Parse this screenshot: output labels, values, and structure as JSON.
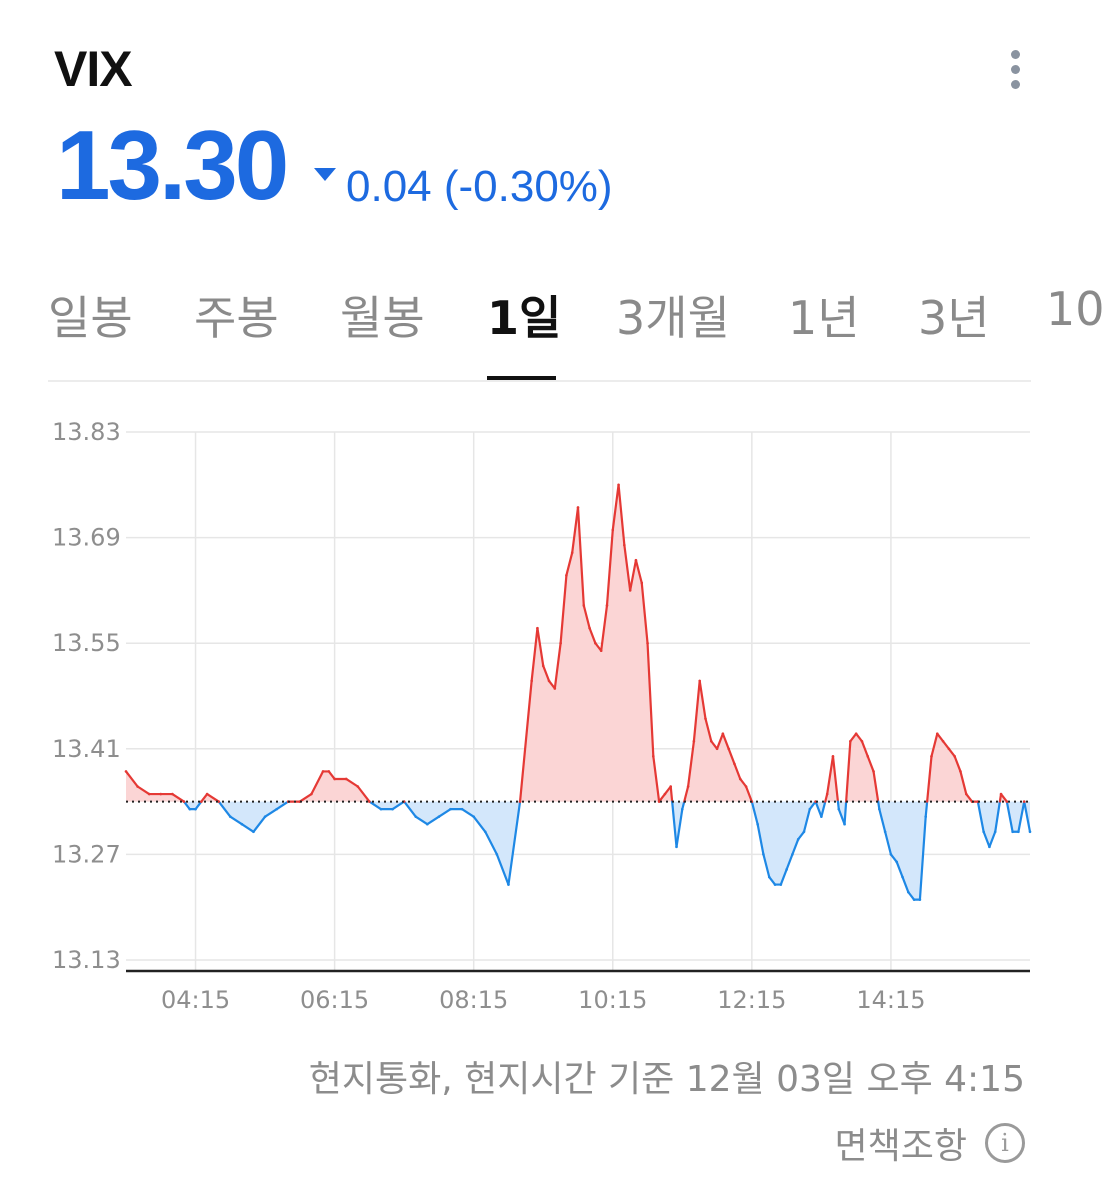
{
  "header": {
    "ticker": "VIX",
    "menu_icon": "more-vertical-icon",
    "price": "13.30",
    "direction_icon": "triangle-down-icon",
    "change": "0.04 (-0.30%)"
  },
  "colors": {
    "accent": "#1d6ae0",
    "up_line": "#e53935",
    "up_fill": "#fbd5d5",
    "down_line": "#1e88e5",
    "down_fill": "#d3e7fb"
  },
  "tabs": [
    {
      "label": "일봉",
      "active": false
    },
    {
      "label": "주봉",
      "active": false
    },
    {
      "label": "월봉",
      "active": false
    },
    {
      "label": "1일",
      "active": true
    },
    {
      "label": "3개월",
      "active": false
    },
    {
      "label": "1년",
      "active": false
    },
    {
      "label": "3년",
      "active": false
    },
    {
      "label": "10",
      "active": false
    }
  ],
  "chart_data": {
    "type": "line",
    "baseline": 13.34,
    "ylim": [
      13.13,
      13.83
    ],
    "yticks": [
      "13.83",
      "13.69",
      "13.55",
      "13.41",
      "13.27",
      "13.13"
    ],
    "xlim": [
      "03:15",
      "16:15"
    ],
    "xticks": [
      "04:15",
      "06:15",
      "08:15",
      "10:15",
      "12:15",
      "14:15"
    ],
    "grid": true,
    "series": [
      {
        "x": [
          "03:15",
          "03:25",
          "03:35",
          "03:45",
          "03:55",
          "04:05",
          "04:10",
          "04:15",
          "04:20",
          "04:25",
          "04:35",
          "04:45",
          "04:55",
          "05:05",
          "05:15",
          "05:25",
          "05:35",
          "05:45",
          "05:55",
          "06:05",
          "06:10",
          "06:15",
          "06:25",
          "06:35",
          "06:45",
          "06:55",
          "07:05",
          "07:15",
          "07:25",
          "07:35",
          "07:45",
          "07:55",
          "08:05",
          "08:15",
          "08:25",
          "08:35",
          "08:45",
          "08:55",
          "09:05",
          "09:10",
          "09:15",
          "09:20",
          "09:25",
          "09:30",
          "09:35",
          "09:40",
          "09:45",
          "09:50",
          "09:55",
          "10:00",
          "10:05",
          "10:10",
          "10:15",
          "10:20",
          "10:25",
          "10:30",
          "10:35",
          "10:40",
          "10:45",
          "10:50",
          "10:55",
          "11:00",
          "11:05",
          "11:10",
          "11:15",
          "11:20",
          "11:25",
          "11:30",
          "11:35",
          "11:40",
          "11:45",
          "11:50",
          "11:55",
          "12:00",
          "12:05",
          "12:10",
          "12:15",
          "12:20",
          "12:25",
          "12:30",
          "12:35",
          "12:40",
          "12:45",
          "12:50",
          "12:55",
          "13:00",
          "13:05",
          "13:10",
          "13:15",
          "13:20",
          "13:25",
          "13:30",
          "13:35",
          "13:40",
          "13:45",
          "13:50",
          "13:55",
          "14:00",
          "14:05",
          "14:10",
          "14:15",
          "14:20",
          "14:25",
          "14:30",
          "14:35",
          "14:40",
          "14:45",
          "14:50",
          "14:55",
          "15:00",
          "15:05",
          "15:10",
          "15:15",
          "15:20",
          "15:25",
          "15:30",
          "15:35",
          "15:40",
          "15:45",
          "15:50",
          "15:55",
          "16:00",
          "16:05",
          "16:10",
          "16:15"
        ],
        "values": [
          13.38,
          13.36,
          13.35,
          13.35,
          13.35,
          13.34,
          13.33,
          13.33,
          13.34,
          13.35,
          13.34,
          13.32,
          13.31,
          13.3,
          13.32,
          13.33,
          13.34,
          13.34,
          13.35,
          13.38,
          13.38,
          13.37,
          13.37,
          13.36,
          13.34,
          13.33,
          13.33,
          13.34,
          13.32,
          13.31,
          13.32,
          13.33,
          13.33,
          13.32,
          13.3,
          13.27,
          13.23,
          13.34,
          13.5,
          13.57,
          13.52,
          13.5,
          13.49,
          13.55,
          13.64,
          13.67,
          13.73,
          13.6,
          13.57,
          13.55,
          13.54,
          13.6,
          13.7,
          13.76,
          13.68,
          13.62,
          13.66,
          13.63,
          13.55,
          13.4,
          13.34,
          13.35,
          13.36,
          13.28,
          13.33,
          13.36,
          13.42,
          13.5,
          13.45,
          13.42,
          13.41,
          13.43,
          13.41,
          13.39,
          13.37,
          13.36,
          13.34,
          13.31,
          13.27,
          13.24,
          13.23,
          13.23,
          13.25,
          13.27,
          13.29,
          13.3,
          13.33,
          13.34,
          13.32,
          13.35,
          13.4,
          13.33,
          13.31,
          13.42,
          13.43,
          13.42,
          13.4,
          13.38,
          13.33,
          13.3,
          13.27,
          13.26,
          13.24,
          13.22,
          13.21,
          13.21,
          13.32,
          13.4,
          13.43,
          13.42,
          13.41,
          13.4,
          13.38,
          13.35,
          13.34,
          13.34,
          13.3,
          13.28,
          13.3,
          13.35,
          13.34,
          13.3,
          13.3,
          13.34,
          13.3
        ]
      }
    ]
  },
  "footnote": "현지통화, 현지시간 기준 12월 03일 오후 4:15",
  "disclaimer": {
    "label": "면책조항",
    "icon": "info-icon"
  }
}
